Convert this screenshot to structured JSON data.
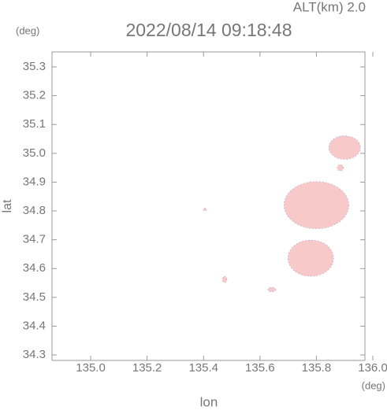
{
  "chart_data": {
    "type": "radar-echo",
    "title": "2022/08/14 09:18:48",
    "altitude_label": "ALT(km) 2.0",
    "x_label": "lon",
    "y_label": "lat",
    "x_unit": "(deg)",
    "y_unit": "(deg)",
    "xlim": [
      134.863,
      135.972
    ],
    "ylim": [
      34.281,
      35.352
    ],
    "xticks": [
      {
        "value": 135.0,
        "label": "135.0"
      },
      {
        "value": 135.2,
        "label": "135.2"
      },
      {
        "value": 135.4,
        "label": "135.4"
      },
      {
        "value": 135.6,
        "label": "135.6"
      },
      {
        "value": 135.8,
        "label": "135.8"
      },
      {
        "value": 136.0,
        "label": "136.0"
      }
    ],
    "yticks": [
      {
        "value": 34.3,
        "label": "34.3"
      },
      {
        "value": 34.4,
        "label": "34.4"
      },
      {
        "value": 34.5,
        "label": "34.5"
      },
      {
        "value": 34.6,
        "label": "34.6"
      },
      {
        "value": 34.7,
        "label": "34.7"
      },
      {
        "value": 34.8,
        "label": "34.8"
      },
      {
        "value": 34.9,
        "label": "34.9"
      },
      {
        "value": 35.0,
        "label": "35.0"
      },
      {
        "value": 35.1,
        "label": "35.1"
      },
      {
        "value": 35.2,
        "label": "35.2"
      },
      {
        "value": 35.3,
        "label": "35.3"
      }
    ],
    "color": "#f7c9c9",
    "edge_color": "#8a7fd8",
    "echoes": {
      "lon": [
        135.8,
        135.9,
        135.885,
        135.78,
        135.642,
        135.475,
        135.405
      ],
      "lat": [
        34.82,
        35.02,
        34.95,
        34.636,
        34.527,
        34.562,
        34.805
      ],
      "rlon": [
        0.115,
        0.056,
        0.011,
        0.081,
        0.014,
        0.008,
        0.005
      ],
      "rlat": [
        0.082,
        0.041,
        0.011,
        0.063,
        0.008,
        0.011,
        0.005
      ]
    }
  }
}
